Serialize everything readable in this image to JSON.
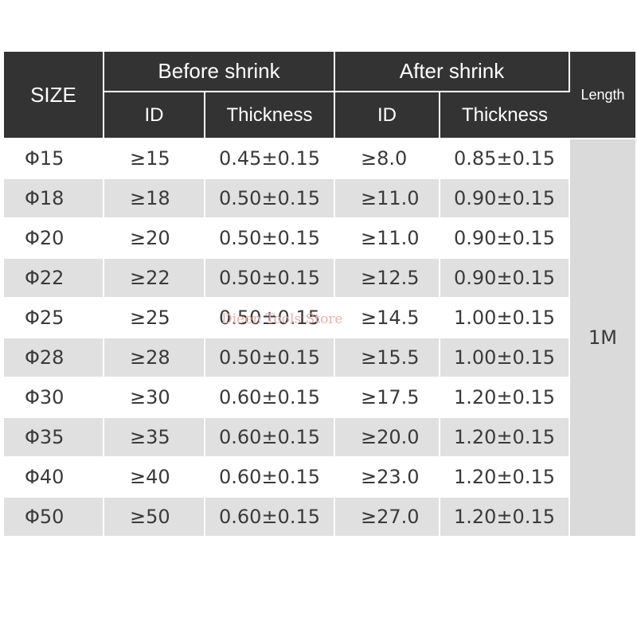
{
  "header": {
    "size": "SIZE",
    "before_shrink": "Before shrink",
    "after_shrink": "After shrink",
    "length": "Length",
    "before_id": "ID",
    "before_thickness": "Thickness",
    "after_id": "ID",
    "after_thickness": "Thickness"
  },
  "rows": [
    {
      "size": "Φ15",
      "before_id": "≥15",
      "before_thickness": "0.45±0.15",
      "after_id": "≥8.0",
      "after_thickness": "0.85±0.15"
    },
    {
      "size": "Φ18",
      "before_id": "≥18",
      "before_thickness": "0.50±0.15",
      "after_id": "≥11.0",
      "after_thickness": "0.90±0.15"
    },
    {
      "size": "Φ20",
      "before_id": "≥20",
      "before_thickness": "0.50±0.15",
      "after_id": "≥11.0",
      "after_thickness": "0.90±0.15"
    },
    {
      "size": "Φ22",
      "before_id": "≥22",
      "before_thickness": "0.50±0.15",
      "after_id": "≥12.5",
      "after_thickness": "0.90±0.15"
    },
    {
      "size": "Φ25",
      "before_id": "≥25",
      "before_thickness": "0.50±0.15",
      "after_id": "≥14.5",
      "after_thickness": "1.00±0.15"
    },
    {
      "size": "Φ28",
      "before_id": "≥28",
      "before_thickness": "0.50±0.15",
      "after_id": "≥15.5",
      "after_thickness": "1.00±0.15"
    },
    {
      "size": "Φ30",
      "before_id": "≥30",
      "before_thickness": "0.60±0.15",
      "after_id": "≥17.5",
      "after_thickness": "1.20±0.15"
    },
    {
      "size": "Φ35",
      "before_id": "≥35",
      "before_thickness": "0.60±0.15",
      "after_id": "≥20.0",
      "after_thickness": "1.20±0.15"
    },
    {
      "size": "Φ40",
      "before_id": "≥40",
      "before_thickness": "0.60±0.15",
      "after_id": "≥23.0",
      "after_thickness": "1.20±0.15"
    },
    {
      "size": "Φ50",
      "before_id": "≥50",
      "before_thickness": "0.60±0.15",
      "after_id": "≥27.0",
      "after_thickness": "1.20±0.15"
    }
  ],
  "length_value": "1M",
  "watermark": "Dieen Tools Store",
  "colors": {
    "header_bg": "#333333",
    "header_text": "#ffffff",
    "row_light": "#ffffff",
    "row_dark": "#e0e0e0",
    "length_bg": "#dadada",
    "watermark": "#e6b2ae"
  }
}
